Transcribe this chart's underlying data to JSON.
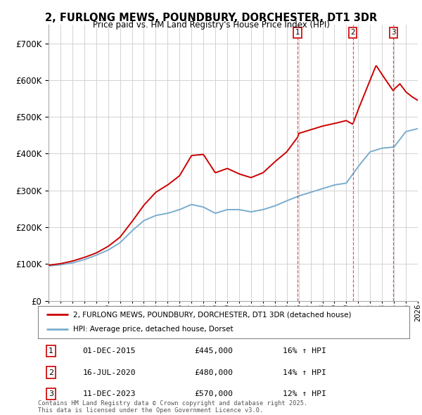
{
  "title": "2, FURLONG MEWS, POUNDBURY, DORCHESTER, DT1 3DR",
  "subtitle": "Price paid vs. HM Land Registry's House Price Index (HPI)",
  "ylim": [
    0,
    750000
  ],
  "yticks": [
    0,
    100000,
    200000,
    300000,
    400000,
    500000,
    600000,
    700000
  ],
  "red_color": "#cc0000",
  "blue_color": "#7aadce",
  "background_color": "#ffffff",
  "grid_color": "#cccccc",
  "purchase_markers": [
    {
      "num": 1,
      "year": 2015.917,
      "price": 445000,
      "date": "01-DEC-2015",
      "pct": "16%"
    },
    {
      "num": 2,
      "year": 2020.542,
      "price": 480000,
      "date": "16-JUL-2020",
      "pct": "14%"
    },
    {
      "num": 3,
      "year": 2023.958,
      "price": 570000,
      "date": "11-DEC-2023",
      "pct": "12%"
    }
  ],
  "legend_label_red": "2, FURLONG MEWS, POUNDBURY, DORCHESTER, DT1 3DR (detached house)",
  "legend_label_blue": "HPI: Average price, detached house, Dorset",
  "footer": "Contains HM Land Registry data © Crown copyright and database right 2025.\nThis data is licensed under the Open Government Licence v3.0.",
  "xmin": 1995,
  "xmax": 2026,
  "hpi_points": [
    [
      1995,
      95000
    ],
    [
      1996,
      98000
    ],
    [
      1997,
      103000
    ],
    [
      1998,
      112000
    ],
    [
      1999,
      124000
    ],
    [
      2000,
      138000
    ],
    [
      2001,
      158000
    ],
    [
      2002,
      190000
    ],
    [
      2003,
      218000
    ],
    [
      2004,
      232000
    ],
    [
      2005,
      238000
    ],
    [
      2006,
      248000
    ],
    [
      2007,
      262000
    ],
    [
      2008,
      255000
    ],
    [
      2009,
      238000
    ],
    [
      2010,
      248000
    ],
    [
      2011,
      248000
    ],
    [
      2012,
      242000
    ],
    [
      2013,
      248000
    ],
    [
      2014,
      258000
    ],
    [
      2015,
      272000
    ],
    [
      2016,
      285000
    ],
    [
      2017,
      295000
    ],
    [
      2018,
      305000
    ],
    [
      2019,
      315000
    ],
    [
      2020,
      320000
    ],
    [
      2021,
      365000
    ],
    [
      2022,
      405000
    ],
    [
      2023,
      415000
    ],
    [
      2024,
      418000
    ],
    [
      2025,
      460000
    ],
    [
      2026,
      468000
    ]
  ],
  "prop_points": [
    [
      1995,
      97000
    ],
    [
      1996,
      101000
    ],
    [
      1997,
      108000
    ],
    [
      1998,
      118000
    ],
    [
      1999,
      130000
    ],
    [
      2000,
      148000
    ],
    [
      2001,
      173000
    ],
    [
      2002,
      215000
    ],
    [
      2003,
      260000
    ],
    [
      2004,
      295000
    ],
    [
      2005,
      315000
    ],
    [
      2006,
      340000
    ],
    [
      2007,
      395000
    ],
    [
      2008,
      398000
    ],
    [
      2009,
      348000
    ],
    [
      2010,
      360000
    ],
    [
      2011,
      345000
    ],
    [
      2012,
      335000
    ],
    [
      2013,
      348000
    ],
    [
      2014,
      378000
    ],
    [
      2015,
      405000
    ],
    [
      2015.917,
      445000
    ],
    [
      2016,
      455000
    ],
    [
      2017,
      465000
    ],
    [
      2018,
      475000
    ],
    [
      2019,
      482000
    ],
    [
      2020,
      490000
    ],
    [
      2020.542,
      480000
    ],
    [
      2021,
      520000
    ],
    [
      2022,
      600000
    ],
    [
      2022.5,
      640000
    ],
    [
      2023,
      615000
    ],
    [
      2023.958,
      570000
    ],
    [
      2024,
      575000
    ],
    [
      2024.5,
      590000
    ],
    [
      2025,
      568000
    ],
    [
      2025.5,
      555000
    ],
    [
      2026,
      545000
    ]
  ]
}
